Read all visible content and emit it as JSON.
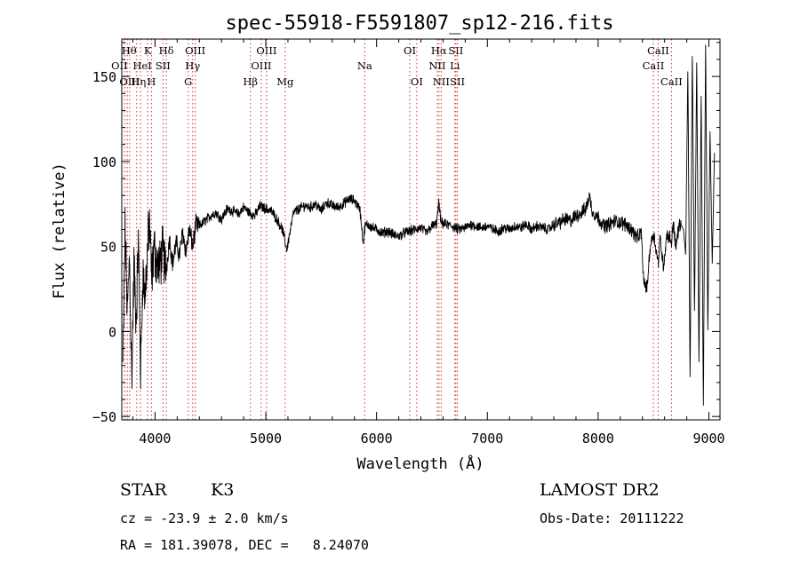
{
  "chart_data": {
    "type": "line",
    "title": "spec-55918-F5591807_sp12-216.fits",
    "xlabel": "Wavelength (Å)",
    "ylabel": "Flux (relative)",
    "xlim": [
      3700,
      9100
    ],
    "ylim": [
      -52,
      172
    ],
    "xticks": [
      4000,
      5000,
      6000,
      7000,
      8000,
      9000
    ],
    "yticks": [
      -50,
      0,
      50,
      100,
      150
    ],
    "grid": false,
    "colors": {
      "spectrum": "#000000",
      "lines": "#d03030",
      "axes": "#000000"
    },
    "spectrum": {
      "x": [
        3710,
        3730,
        3750,
        3770,
        3790,
        3810,
        3830,
        3850,
        3870,
        3890,
        3910,
        3930,
        3950,
        3970,
        3990,
        4010,
        4040,
        4070,
        4100,
        4130,
        4160,
        4190,
        4220,
        4250,
        4280,
        4310,
        4340,
        4370,
        4400,
        4450,
        4500,
        4550,
        4600,
        4650,
        4700,
        4750,
        4800,
        4850,
        4900,
        4950,
        5000,
        5050,
        5100,
        5150,
        5190,
        5250,
        5300,
        5350,
        5400,
        5450,
        5500,
        5550,
        5600,
        5650,
        5700,
        5750,
        5800,
        5850,
        5880,
        5895,
        5920,
        5960,
        6000,
        6050,
        6100,
        6150,
        6200,
        6250,
        6300,
        6350,
        6400,
        6450,
        6500,
        6540,
        6563,
        6580,
        6620,
        6680,
        6740,
        6800,
        6850,
        6900,
        6950,
        7000,
        7050,
        7100,
        7150,
        7200,
        7250,
        7300,
        7350,
        7400,
        7450,
        7500,
        7550,
        7600,
        7650,
        7700,
        7750,
        7800,
        7850,
        7890,
        7920,
        7950,
        8000,
        8050,
        8100,
        8150,
        8200,
        8250,
        8300,
        8350,
        8390,
        8410,
        8440,
        8470,
        8500,
        8542,
        8560,
        8590,
        8620,
        8650,
        8662,
        8680,
        8700,
        8720,
        8740,
        8770,
        8790,
        8810,
        8830,
        8850,
        8870,
        8890,
        8910,
        8930,
        8950,
        8970,
        8990,
        9010,
        9030,
        9050
      ],
      "y": [
        -20,
        60,
        10,
        45,
        -30,
        40,
        5,
        55,
        -25,
        35,
        20,
        45,
        65,
        30,
        50,
        42,
        38,
        48,
        35,
        55,
        40,
        52,
        45,
        58,
        47,
        60,
        50,
        63,
        62,
        65,
        68,
        70,
        66,
        72,
        71,
        69,
        73,
        70,
        68,
        74,
        72,
        71,
        66,
        60,
        48,
        70,
        72,
        74,
        73,
        75,
        71,
        76,
        74,
        73,
        75,
        78,
        77,
        72,
        52,
        62,
        63,
        61,
        60,
        58,
        59,
        57,
        56,
        58,
        59,
        60,
        61,
        58,
        62,
        63,
        76,
        64,
        63,
        62,
        60,
        61,
        63,
        62,
        61,
        62,
        60,
        59,
        61,
        60,
        62,
        61,
        63,
        60,
        62,
        61,
        60,
        63,
        64,
        66,
        65,
        68,
        70,
        72,
        80,
        70,
        67,
        62,
        63,
        65,
        64,
        63,
        60,
        55,
        58,
        30,
        25,
        50,
        58,
        40,
        55,
        38,
        57,
        55,
        52,
        65,
        48,
        58,
        64,
        60,
        45,
        155,
        -30,
        165,
        10,
        160,
        -20,
        140,
        -45,
        170,
        0,
        118,
        40,
        105
      ],
      "points": 2400
    },
    "lines": [
      {
        "wl": 3727,
        "label": "OII",
        "row": 1,
        "dx": -6
      },
      {
        "wl": 3750,
        "label": "Hθ",
        "row": 0,
        "dx": 2
      },
      {
        "wl": 3771,
        "label": "OIII",
        "row": 2,
        "dx": 0
      },
      {
        "wl": 3835,
        "label": "Hη",
        "row": 2,
        "dx": 2
      },
      {
        "wl": 3869,
        "label": "HeI",
        "row": 1,
        "dx": 2
      },
      {
        "wl": 3934,
        "label": "K",
        "row": 0,
        "dx": 0
      },
      {
        "wl": 3968,
        "label": "H",
        "row": 2,
        "dx": 0
      },
      {
        "wl": 4072,
        "label": "SII",
        "row": 1,
        "dx": 0
      },
      {
        "wl": 4102,
        "label": "Hδ",
        "row": 0,
        "dx": 0
      },
      {
        "wl": 4300,
        "label": "G",
        "row": 2,
        "dx": 0
      },
      {
        "wl": 4340,
        "label": "Hγ",
        "row": 1,
        "dx": 0
      },
      {
        "wl": 4363,
        "label": "OIII",
        "row": 0,
        "dx": 0
      },
      {
        "wl": 4861,
        "label": "Hβ",
        "row": 2,
        "dx": 0
      },
      {
        "wl": 4959,
        "label": "OIII",
        "row": 1,
        "dx": 0
      },
      {
        "wl": 5007,
        "label": "OIII",
        "row": 0,
        "dx": 0
      },
      {
        "wl": 5175,
        "label": "Mg",
        "row": 2,
        "dx": 0
      },
      {
        "wl": 5893,
        "label": "Na",
        "row": 1,
        "dx": 0
      },
      {
        "wl": 6300,
        "label": "OI",
        "row": 0,
        "dx": 0
      },
      {
        "wl": 6363,
        "label": "OI",
        "row": 2,
        "dx": 0
      },
      {
        "wl": 6548,
        "label": "NII",
        "row": 1,
        "dx": 0
      },
      {
        "wl": 6563,
        "label": "Hα",
        "row": 0,
        "dx": 0
      },
      {
        "wl": 6583,
        "label": "NII",
        "row": 2,
        "dx": 0
      },
      {
        "wl": 6707,
        "label": "Li",
        "row": 1,
        "dx": 0
      },
      {
        "wl": 6716,
        "label": "SII",
        "row": 0,
        "dx": 0
      },
      {
        "wl": 6730,
        "label": "SII",
        "row": 2,
        "dx": 0
      },
      {
        "wl": 8498,
        "label": "CaII",
        "row": 1,
        "dx": 0
      },
      {
        "wl": 8542,
        "label": "CaII",
        "row": 0,
        "dx": 0
      },
      {
        "wl": 8662,
        "label": "CaII",
        "row": 2,
        "dx": 0
      }
    ]
  },
  "info": {
    "class": "STAR",
    "subclass": "K3",
    "survey": "LAMOST DR2",
    "cz": "cz = -23.9 ± 2.0 km/s",
    "obs_date": "Obs-Date: 20111222",
    "radec": "RA = 181.39078, DEC =   8.24070"
  }
}
